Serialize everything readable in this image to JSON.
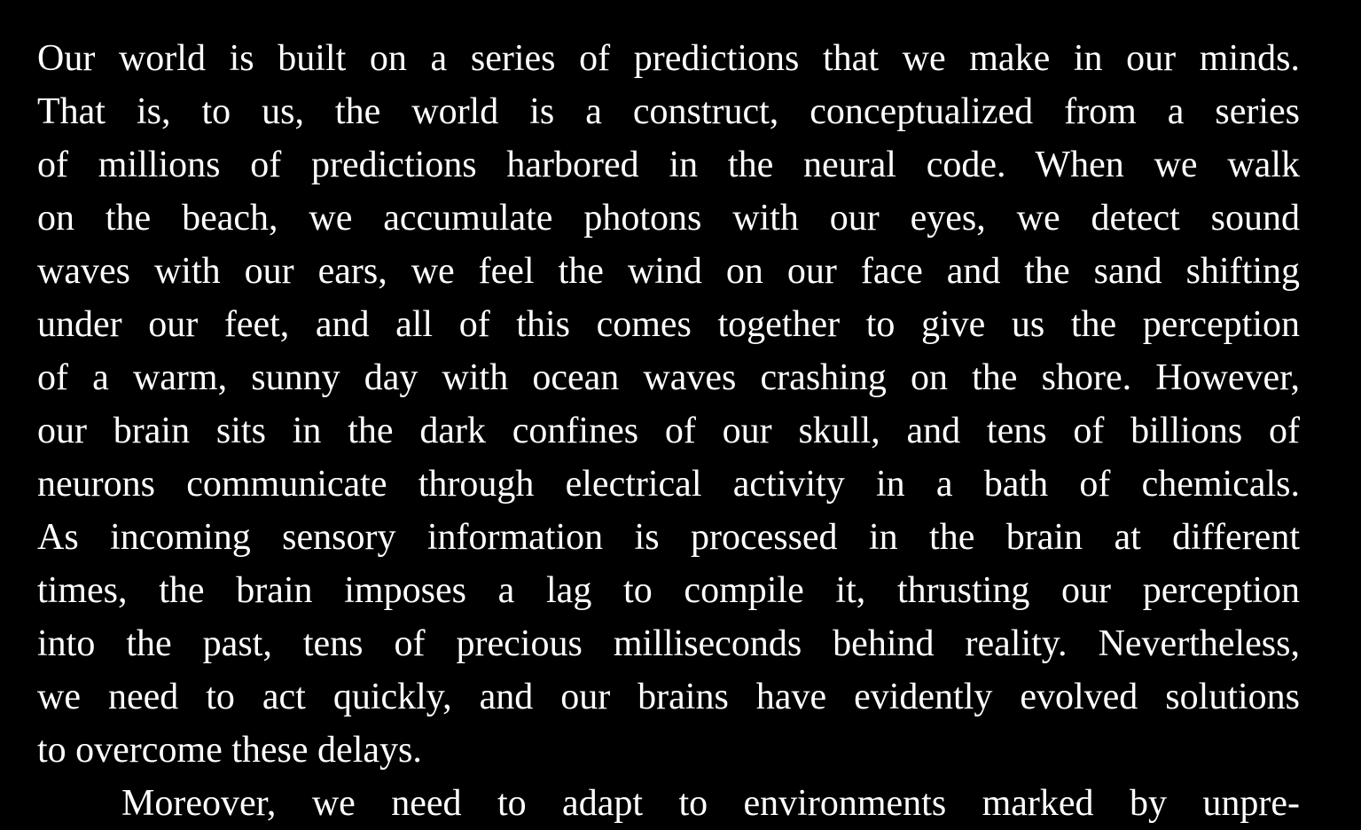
{
  "paragraphs": [
    {
      "lines": [
        "Our world is built on a series of predictions that we make in our minds.",
        "That is, to us, the world is a construct, conceptualized from a series",
        "of millions of predictions harbored in the neural code. When we walk",
        "on the beach, we accumulate photons with our eyes, we detect sound",
        "waves with our ears, we feel the wind on our face and the sand shifting",
        "under our feet, and all of this comes together to give us the perception",
        "of a warm, sunny day with ocean waves crashing on the shore. However,",
        "our brain sits in the dark confines of our skull, and tens of billions of",
        "neurons communicate through electrical activity in a bath of chemicals.",
        "As incoming sensory information is processed in the brain at different",
        "times, the brain imposes a lag to compile it, thrusting our perception",
        "into the past, tens of precious milliseconds behind reality. Nevertheless,",
        "we need to act quickly, and our brains have evidently evolved solutions",
        "to overcome these delays."
      ]
    },
    {
      "lines": [
        "Moreover, we need to adapt to environments marked by unpre-"
      ]
    }
  ]
}
